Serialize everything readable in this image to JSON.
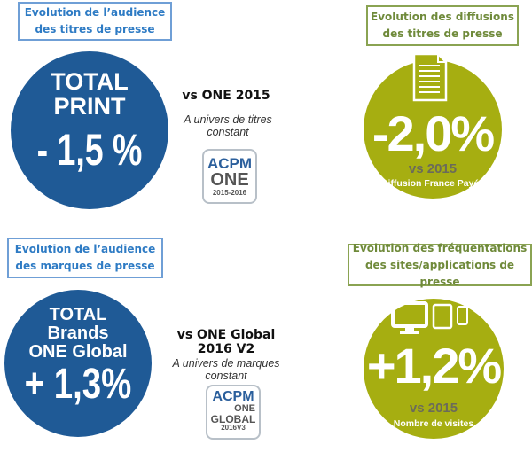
{
  "panels": [
    {
      "title_line1": "Evolution de l’audience",
      "title_line2": "des titres de presse",
      "circle_lines": [
        "TOTAL",
        "PRINT"
      ],
      "value": "- 1,5 %",
      "compare": "vs ONE 2015",
      "note_line1": "A univers de titres",
      "note_line2": "constant",
      "logo": {
        "top": "ACPM",
        "mid": "ONE",
        "bottom": "2015-2016"
      }
    },
    {
      "title_line1": "Evolution des diffusions",
      "title_line2": "des titres de presse",
      "icon": "document-icon",
      "value": "-2,0%",
      "compare": "vs 2015",
      "sub": "Diffusion France Payée"
    },
    {
      "title_line1": "Evolution de l’audience",
      "title_line2": "des marques de presse",
      "circle_lines": [
        "TOTAL",
        "Brands",
        "ONE Global"
      ],
      "value": "+ 1,3%",
      "compare_line1": "vs ONE Global",
      "compare_line2": "2016 V2",
      "note_line1": "A univers de marques",
      "note_line2": "constant",
      "logo": {
        "top": "ACPM",
        "mid": "ONE",
        "mid2": "GLOBAL",
        "bottom": "2016V3"
      }
    },
    {
      "title_line1": "Evolution des fréquentations",
      "title_line2": "des sites/applications de presse",
      "icon": "devices-icon",
      "value": "+1,2%",
      "compare": "vs 2015",
      "sub": "Nombre de visites"
    }
  ],
  "colors": {
    "blue_circle": "#1f5a96",
    "green_circle": "#a6ae11",
    "blue_text": "#2e7bc4",
    "green_text": "#6f8a3a"
  }
}
